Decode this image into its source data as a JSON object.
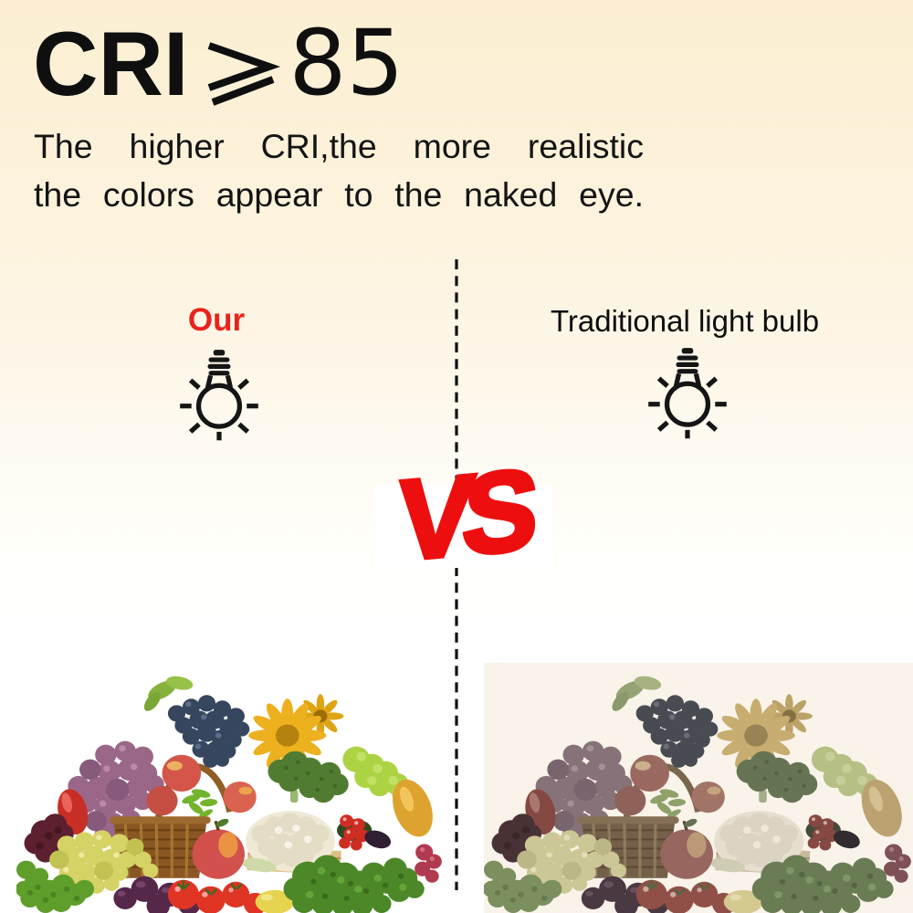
{
  "header": {
    "title": {
      "prefix": "CRI",
      "symbol": "⩾",
      "value": "85"
    },
    "subtitle_lines": [
      "The higher CRI,the more realistic",
      "the colors appear to the naked eye."
    ]
  },
  "comparison": {
    "left_label": "Our",
    "right_label": "Traditional light bulb",
    "versus_label": "VS"
  },
  "colors": {
    "accent_red": "#ed0f0f",
    "our_label_red": "#e8231d",
    "text_black": "#0f0f0f",
    "background_top": "#fcefd2",
    "background_bottom": "#ffffff"
  },
  "icons": {
    "title_symbol": "greater-equal-icon",
    "left_column": "light-bulb-icon",
    "right_column": "light-bulb-icon",
    "divider": "vertical-dashed-line"
  },
  "photos": {
    "left_alt": "Basket of colorful fruits and vegetables shown vivid (high CRI light)",
    "right_alt": "Same basket of fruits and vegetables shown dull (traditional light bulb)"
  }
}
